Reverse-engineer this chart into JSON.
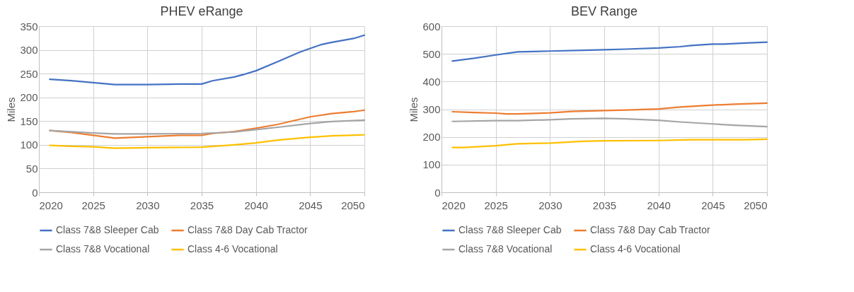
{
  "chart_data": [
    {
      "type": "line",
      "title": "PHEV eRange",
      "ylabel": "Miles",
      "xlim": [
        2020,
        2050
      ],
      "xticks": [
        2020,
        2025,
        2030,
        2035,
        2040,
        2045,
        2050
      ],
      "ylim": [
        0,
        350
      ],
      "yticks": [
        0,
        50,
        100,
        150,
        200,
        250,
        300,
        350
      ],
      "grid": true,
      "legend": "bottom",
      "series": [
        {
          "name": "Class 7&8 Sleeper Cab",
          "color": "#4472c4",
          "x": [
            2021,
            2023,
            2025,
            2027,
            2030,
            2033,
            2035,
            2036,
            2038,
            2039,
            2040,
            2042,
            2044,
            2045,
            2046,
            2047,
            2049,
            2050
          ],
          "values": [
            238,
            235,
            231,
            227,
            227,
            228,
            228,
            235,
            243,
            249,
            256,
            275,
            295,
            303,
            311,
            316,
            324,
            331
          ]
        },
        {
          "name": "Class 7&8 Day Cab Tractor",
          "color": "#ed7d31",
          "x": [
            2021,
            2023,
            2025,
            2027,
            2030,
            2033,
            2035,
            2036,
            2038,
            2040,
            2042,
            2045,
            2047,
            2049,
            2050
          ],
          "values": [
            130,
            126,
            120,
            114,
            117,
            120,
            120,
            124,
            128,
            135,
            143,
            159,
            166,
            170,
            173
          ]
        },
        {
          "name": "Class 7&8 Vocational",
          "color": "#a5a5a5",
          "x": [
            2021,
            2025,
            2027,
            2030,
            2035,
            2038,
            2040,
            2042,
            2045,
            2047,
            2050
          ],
          "values": [
            130,
            125,
            123,
            123,
            124,
            127,
            132,
            137,
            145,
            149,
            152
          ]
        },
        {
          "name": "Class 4-6 Vocational",
          "color": "#ffc000",
          "x": [
            2021,
            2023,
            2025,
            2027,
            2030,
            2035,
            2038,
            2040,
            2042,
            2045,
            2047,
            2050
          ],
          "values": [
            99,
            97,
            96,
            93,
            94,
            95,
            100,
            104,
            110,
            116,
            119,
            121
          ]
        }
      ]
    },
    {
      "type": "line",
      "title": "BEV Range",
      "ylabel": "Miles",
      "xlim": [
        2020,
        2050
      ],
      "xticks": [
        2020,
        2025,
        2030,
        2035,
        2040,
        2045,
        2050
      ],
      "ylim": [
        0,
        600
      ],
      "yticks": [
        0,
        100,
        200,
        300,
        400,
        500,
        600
      ],
      "grid": true,
      "legend": "bottom",
      "series": [
        {
          "name": "Class 7&8 Sleeper Cab",
          "color": "#4472c4",
          "x": [
            2021,
            2023,
            2025,
            2027,
            2030,
            2033,
            2035,
            2037,
            2040,
            2042,
            2043,
            2045,
            2046,
            2048,
            2050
          ],
          "values": [
            474,
            484,
            496,
            507,
            510,
            513,
            515,
            517,
            521,
            526,
            530,
            535,
            535,
            539,
            542
          ]
        },
        {
          "name": "Class 7&8 Day Cab Tractor",
          "color": "#ed7d31",
          "x": [
            2021,
            2023,
            2025,
            2026,
            2027,
            2030,
            2032,
            2035,
            2037,
            2040,
            2042,
            2045,
            2047,
            2050
          ],
          "values": [
            291,
            288,
            286,
            283,
            283,
            287,
            292,
            295,
            297,
            301,
            308,
            315,
            318,
            322
          ]
        },
        {
          "name": "Class 7&8 Vocational",
          "color": "#a5a5a5",
          "x": [
            2021,
            2025,
            2027,
            2030,
            2032,
            2035,
            2037,
            2040,
            2042,
            2045,
            2047,
            2050
          ],
          "values": [
            256,
            259,
            259,
            262,
            265,
            267,
            265,
            260,
            254,
            247,
            242,
            237
          ]
        },
        {
          "name": "Class 4-6 Vocational",
          "color": "#ffc000",
          "x": [
            2021,
            2022,
            2025,
            2027,
            2030,
            2033,
            2035,
            2040,
            2043,
            2045,
            2048,
            2050
          ],
          "values": [
            162,
            162,
            168,
            175,
            178,
            184,
            186,
            187,
            190,
            190,
            190,
            192
          ]
        }
      ]
    }
  ]
}
